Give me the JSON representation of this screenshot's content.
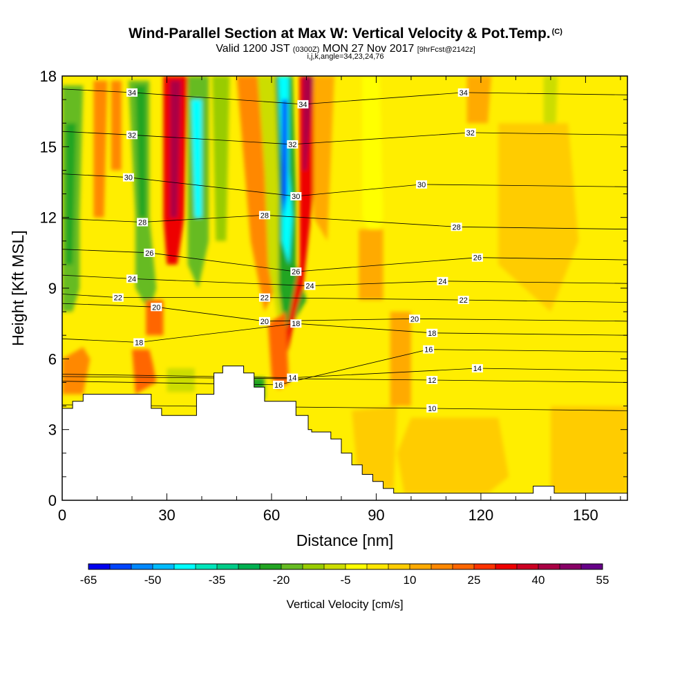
{
  "chart_data": {
    "type": "heatmap",
    "title": "Wind-Parallel Section at Max W: Vertical Velocity & Pot.Temp.",
    "title_mark": "(C)",
    "subtitle": {
      "main": "Valid 1200 JST",
      "zulu": "(0300Z)",
      "date": "MON 27 Nov 2017",
      "fcst": "[9hrFcst@2142z]"
    },
    "subtitle2": "i,j,k,angle=34,23,24,76",
    "xlabel": "Distance [nm]",
    "ylabel": "Height [Kft MSL]",
    "xlim": [
      0,
      162
    ],
    "ylim": [
      0,
      18
    ],
    "x_ticks": [
      "0",
      "30",
      "60",
      "90",
      "120",
      "150"
    ],
    "y_ticks": [
      "0",
      "3",
      "6",
      "9",
      "12",
      "15",
      "18"
    ],
    "colorbar": {
      "label": "Vertical Velocity [cm/s]",
      "tick_labels": [
        "-65",
        "-50",
        "-35",
        "-20",
        "-5",
        "10",
        "25",
        "40",
        "55"
      ],
      "bins": [
        -65,
        -60,
        -55,
        -50,
        -45,
        -40,
        -35,
        -30,
        -25,
        -20,
        -15,
        -10,
        -5,
        0,
        5,
        10,
        15,
        20,
        25,
        30,
        35,
        40,
        45,
        50,
        55
      ],
      "colors": [
        "#0000ee",
        "#0044ff",
        "#0088ff",
        "#00bbff",
        "#00ffff",
        "#00e5bb",
        "#00cc88",
        "#00b050",
        "#22a522",
        "#66bb22",
        "#99cc00",
        "#ccdd00",
        "#ffff00",
        "#ffe600",
        "#ffcc00",
        "#ffaa00",
        "#ff8800",
        "#ff6600",
        "#ff3300",
        "#ee0000",
        "#cc0022",
        "#aa0044",
        "#880066",
        "#660088"
      ]
    },
    "theta_contours": {
      "units": "C",
      "labels": [
        {
          "v": "34",
          "x": 20,
          "y": 17.3
        },
        {
          "v": "34",
          "x": 69,
          "y": 16.8
        },
        {
          "v": "34",
          "x": 115,
          "y": 17.3
        },
        {
          "v": "32",
          "x": 20,
          "y": 15.5
        },
        {
          "v": "32",
          "x": 66,
          "y": 15.1
        },
        {
          "v": "32",
          "x": 117,
          "y": 15.6
        },
        {
          "v": "30",
          "x": 19,
          "y": 13.7
        },
        {
          "v": "30",
          "x": 67,
          "y": 12.9
        },
        {
          "v": "30",
          "x": 103,
          "y": 13.4
        },
        {
          "v": "28",
          "x": 23,
          "y": 11.8
        },
        {
          "v": "28",
          "x": 58,
          "y": 12.1
        },
        {
          "v": "28",
          "x": 113,
          "y": 11.6
        },
        {
          "v": "26",
          "x": 25,
          "y": 10.5
        },
        {
          "v": "26",
          "x": 67,
          "y": 9.7
        },
        {
          "v": "26",
          "x": 119,
          "y": 10.3
        },
        {
          "v": "24",
          "x": 20,
          "y": 9.4
        },
        {
          "v": "24",
          "x": 71,
          "y": 9.1
        },
        {
          "v": "24",
          "x": 109,
          "y": 9.3
        },
        {
          "v": "22",
          "x": 16,
          "y": 8.6
        },
        {
          "v": "22",
          "x": 58,
          "y": 8.6
        },
        {
          "v": "22",
          "x": 115,
          "y": 8.5
        },
        {
          "v": "20",
          "x": 27,
          "y": 8.2
        },
        {
          "v": "20",
          "x": 58,
          "y": 7.6
        },
        {
          "v": "20",
          "x": 101,
          "y": 7.7
        },
        {
          "v": "18",
          "x": 22,
          "y": 6.7
        },
        {
          "v": "18",
          "x": 67,
          "y": 7.5
        },
        {
          "v": "18",
          "x": 106,
          "y": 7.1
        },
        {
          "v": "16",
          "x": 62,
          "y": 4.9
        },
        {
          "v": "16",
          "x": 105,
          "y": 6.4
        },
        {
          "v": "14",
          "x": 66,
          "y": 5.2
        },
        {
          "v": "14",
          "x": 119,
          "y": 5.6
        },
        {
          "v": "12",
          "x": 106,
          "y": 5.1
        },
        {
          "v": "10",
          "x": 106,
          "y": 3.9
        }
      ]
    }
  }
}
